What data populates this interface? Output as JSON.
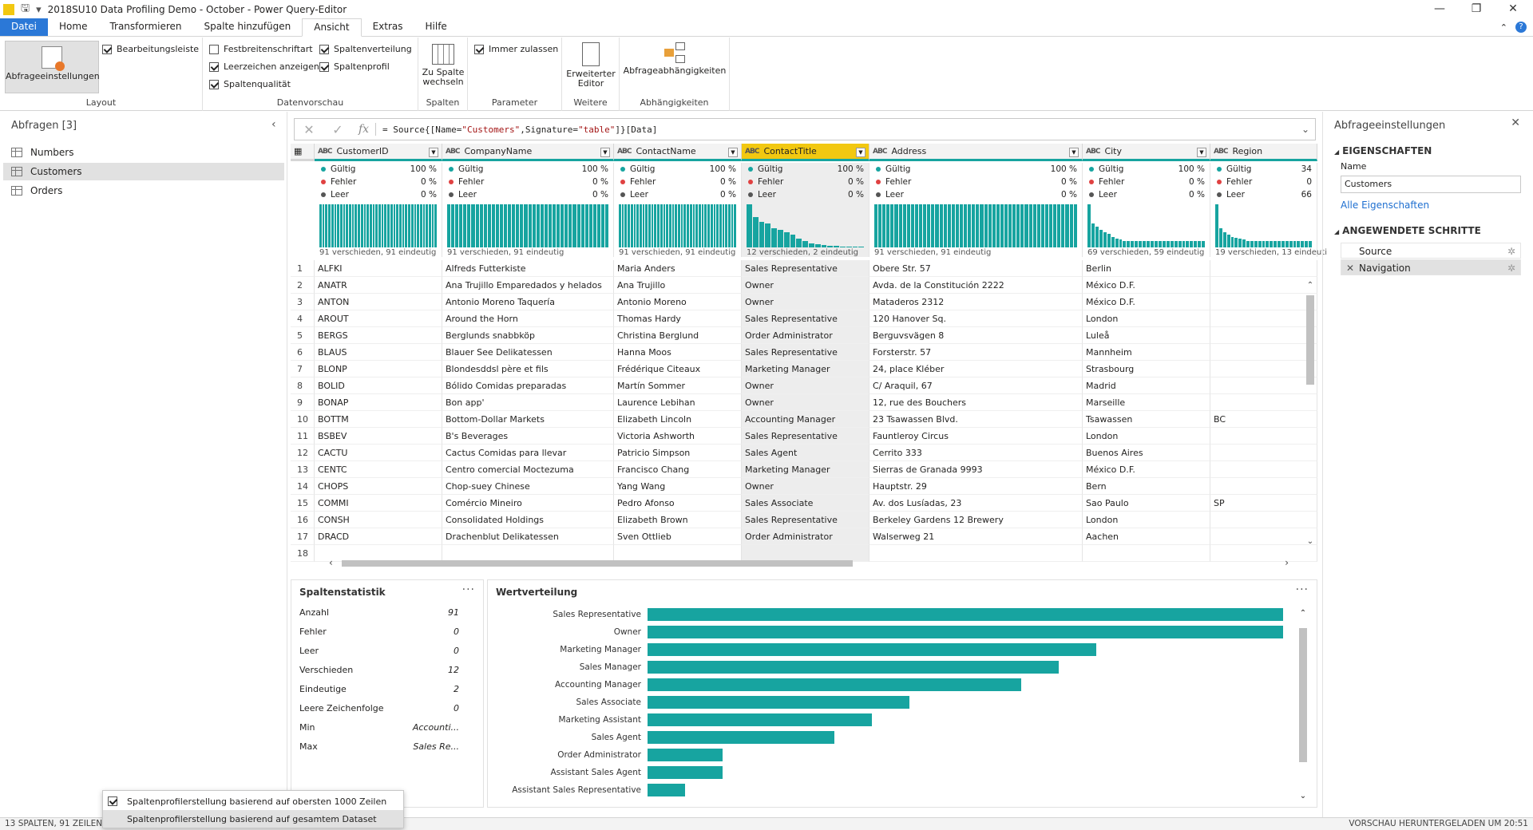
{
  "window": {
    "title": "2018SU10 Data Profiling Demo - October - Power Query-Editor",
    "minimize": "—",
    "restore": "❐",
    "close": "✕"
  },
  "ribbon_tabs": [
    "Datei",
    "Home",
    "Transformieren",
    "Spalte hinzufügen",
    "Ansicht",
    "Extras",
    "Hilfe"
  ],
  "active_tab": "Ansicht",
  "ribbon": {
    "layout": {
      "query_settings_label": "Abfrageeinstellungen",
      "formula_bar_label": "Bearbeitungsleiste",
      "group_label": "Layout"
    },
    "preview": {
      "monospace_label": "Festbreitenschriftart",
      "whitespace_label": "Leerzeichen anzeigen",
      "quality_label": "Spaltenqualität",
      "distribution_label": "Spaltenverteilung",
      "profile_label": "Spaltenprofil",
      "group_label": "Datenvorschau"
    },
    "columns": {
      "goto_label_1": "Zu Spalte",
      "goto_label_2": "wechseln",
      "group_label": "Spalten"
    },
    "params": {
      "always_allow_label": "Immer zulassen",
      "group_label": "Parameter"
    },
    "other": {
      "advanced_label_1": "Erweiterter",
      "advanced_label_2": "Editor",
      "group_label": "Weitere"
    },
    "deps": {
      "label": "Abfrageabhängigkeiten",
      "group_label": "Abhängigkeiten"
    }
  },
  "left_pane": {
    "title": "Abfragen [3]",
    "queries": [
      "Numbers",
      "Customers",
      "Orders"
    ],
    "selected": "Customers"
  },
  "formula": {
    "prefix": "= Source{[Name=",
    "s1": "\"Customers\"",
    "mid": ",Signature=",
    "s2": "\"table\"",
    "suffix": "]}[Data]",
    "fx": "fx"
  },
  "columns": [
    {
      "name": "CustomerID",
      "valid": "100 %",
      "error": "0 %",
      "empty": "0 %",
      "footer": "91 verschieden, 91 eindeutig"
    },
    {
      "name": "CompanyName",
      "valid": "100 %",
      "error": "0 %",
      "empty": "0 %",
      "footer": "91 verschieden, 91 eindeutig"
    },
    {
      "name": "ContactName",
      "valid": "100 %",
      "error": "0 %",
      "empty": "0 %",
      "footer": "91 verschieden, 91 eindeutig"
    },
    {
      "name": "ContactTitle",
      "valid": "100 %",
      "error": "0 %",
      "empty": "0 %",
      "footer": "12 verschieden, 2 eindeutig"
    },
    {
      "name": "Address",
      "valid": "100 %",
      "error": "0 %",
      "empty": "0 %",
      "footer": "91 verschieden, 91 eindeutig"
    },
    {
      "name": "City",
      "valid": "100 %",
      "error": "0 %",
      "empty": "0 %",
      "footer": "69 verschieden, 59 eindeutig"
    },
    {
      "name": "Region",
      "valid": "34",
      "error": "0",
      "empty": "66",
      "footer": "19 verschieden, 13 eindeuti"
    }
  ],
  "quality_labels": {
    "valid": "Gültig",
    "error": "Fehler",
    "empty": "Leer"
  },
  "rows": [
    [
      "1",
      "ALFKI",
      "Alfreds Futterkiste",
      "Maria Anders",
      "Sales Representative",
      "Obere Str. 57",
      "Berlin",
      ""
    ],
    [
      "2",
      "ANATR",
      "Ana Trujillo Emparedados y helados",
      "Ana Trujillo",
      "Owner",
      "Avda. de la Constitución 2222",
      "México D.F.",
      ""
    ],
    [
      "3",
      "ANTON",
      "Antonio Moreno Taquería",
      "Antonio Moreno",
      "Owner",
      "Mataderos  2312",
      "México D.F.",
      ""
    ],
    [
      "4",
      "AROUT",
      "Around the Horn",
      "Thomas Hardy",
      "Sales Representative",
      "120 Hanover Sq.",
      "London",
      ""
    ],
    [
      "5",
      "BERGS",
      "Berglunds snabbköp",
      "Christina Berglund",
      "Order Administrator",
      "Berguvsvägen  8",
      "Luleå",
      ""
    ],
    [
      "6",
      "BLAUS",
      "Blauer See Delikatessen",
      "Hanna Moos",
      "Sales Representative",
      "Forsterstr. 57",
      "Mannheim",
      ""
    ],
    [
      "7",
      "BLONP",
      "Blondesddsl père et fils",
      "Frédérique Citeaux",
      "Marketing Manager",
      "24, place Kléber",
      "Strasbourg",
      ""
    ],
    [
      "8",
      "BOLID",
      "Bólido Comidas preparadas",
      "Martín Sommer",
      "Owner",
      "C/ Araquil, 67",
      "Madrid",
      ""
    ],
    [
      "9",
      "BONAP",
      "Bon app'",
      "Laurence Lebihan",
      "Owner",
      "12, rue des Bouchers",
      "Marseille",
      ""
    ],
    [
      "10",
      "BOTTM",
      "Bottom-Dollar Markets",
      "Elizabeth Lincoln",
      "Accounting Manager",
      "23 Tsawassen Blvd.",
      "Tsawassen",
      "BC"
    ],
    [
      "11",
      "BSBEV",
      "B's Beverages",
      "Victoria Ashworth",
      "Sales Representative",
      "Fauntleroy Circus",
      "London",
      ""
    ],
    [
      "12",
      "CACTU",
      "Cactus Comidas para llevar",
      "Patricio Simpson",
      "Sales Agent",
      "Cerrito 333",
      "Buenos Aires",
      ""
    ],
    [
      "13",
      "CENTC",
      "Centro comercial Moctezuma",
      "Francisco Chang",
      "Marketing Manager",
      "Sierras de Granada 9993",
      "México D.F.",
      ""
    ],
    [
      "14",
      "CHOPS",
      "Chop-suey Chinese",
      "Yang Wang",
      "Owner",
      "Hauptstr. 29",
      "Bern",
      ""
    ],
    [
      "15",
      "COMMI",
      "Comércio Mineiro",
      "Pedro Afonso",
      "Sales Associate",
      "Av. dos Lusíadas, 23",
      "Sao Paulo",
      "SP"
    ],
    [
      "16",
      "CONSH",
      "Consolidated Holdings",
      "Elizabeth Brown",
      "Sales Representative",
      "Berkeley Gardens 12  Brewery",
      "London",
      ""
    ],
    [
      "17",
      "DRACD",
      "Drachenblut Delikatessen",
      "Sven Ottlieb",
      "Order Administrator",
      "Walserweg 21",
      "Aachen",
      ""
    ],
    [
      "18",
      "",
      "",
      "",
      "",
      "",
      "",
      ""
    ]
  ],
  "column_stats": {
    "title": "Spaltenstatistik",
    "more": "···",
    "items": [
      {
        "label": "Anzahl",
        "value": "91"
      },
      {
        "label": "Fehler",
        "value": "0"
      },
      {
        "label": "Leer",
        "value": "0"
      },
      {
        "label": "Verschieden",
        "value": "12"
      },
      {
        "label": "Eindeutige",
        "value": "2"
      },
      {
        "label": "Leere Zeichenfolge",
        "value": "0"
      },
      {
        "label": "Min",
        "value": "Accounti..."
      },
      {
        "label": "Max",
        "value": "Sales Re..."
      }
    ]
  },
  "value_distribution": {
    "title": "Wertverteilung",
    "more": "···",
    "max": 17,
    "items": [
      {
        "label": "Sales Representative",
        "value": 17
      },
      {
        "label": "Owner",
        "value": 17
      },
      {
        "label": "Marketing Manager",
        "value": 12
      },
      {
        "label": "Sales Manager",
        "value": 11
      },
      {
        "label": "Accounting Manager",
        "value": 10
      },
      {
        "label": "Sales Associate",
        "value": 7
      },
      {
        "label": "Marketing Assistant",
        "value": 6
      },
      {
        "label": "Sales Agent",
        "value": 5
      },
      {
        "label": "Order Administrator",
        "value": 2
      },
      {
        "label": "Assistant Sales Agent",
        "value": 2
      },
      {
        "label": "Assistant Sales Representative",
        "value": 1
      }
    ]
  },
  "right_pane": {
    "title": "Abfrageeinstellungen",
    "properties_header": "EIGENSCHAFTEN",
    "name_label": "Name",
    "name_value": "Customers",
    "all_properties": "Alle Eigenschaften",
    "steps_header": "ANGEWENDETE SCHRITTE",
    "steps": [
      "Source",
      "Navigation"
    ]
  },
  "status": {
    "left": "13 SPALTEN, 91 ZEILEN",
    "right": "VORSCHAU HERUNTERGELADEN UM 20:51"
  },
  "popup": {
    "option1": "Spaltenprofilerstellung basierend auf obersten 1000 Zeilen",
    "option2": "Spaltenprofilerstellung basierend auf gesamtem Dataset"
  },
  "colors": {
    "accent": "#17a4a0",
    "selected_column": "#f2c811",
    "file_tab": "#2b78d7"
  }
}
